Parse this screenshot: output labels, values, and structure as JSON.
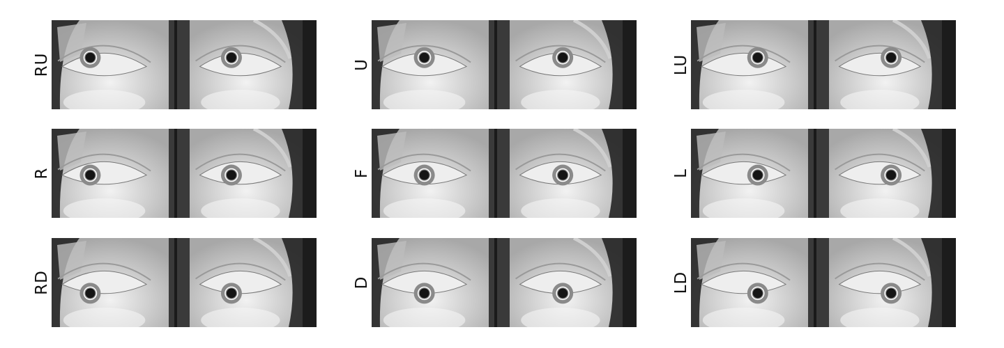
{
  "figure": {
    "panels": [
      {
        "label": "RU",
        "right_pupil_dx": -0.12,
        "left_pupil_dx": -0.08,
        "pupil_dy": -0.1
      },
      {
        "label": "U",
        "right_pupil_dx": 0.0,
        "left_pupil_dx": 0.02,
        "pupil_dy": -0.1
      },
      {
        "label": "LU",
        "right_pupil_dx": 0.12,
        "left_pupil_dx": 0.1,
        "pupil_dy": -0.1
      },
      {
        "label": "R",
        "right_pupil_dx": -0.12,
        "left_pupil_dx": -0.08,
        "pupil_dy": 0.0
      },
      {
        "label": "F",
        "right_pupil_dx": 0.0,
        "left_pupil_dx": 0.02,
        "pupil_dy": 0.0
      },
      {
        "label": "L",
        "right_pupil_dx": 0.12,
        "left_pupil_dx": 0.1,
        "pupil_dy": 0.0
      },
      {
        "label": "RD",
        "right_pupil_dx": -0.12,
        "left_pupil_dx": -0.08,
        "pupil_dy": 0.1
      },
      {
        "label": "D",
        "right_pupil_dx": 0.0,
        "left_pupil_dx": 0.02,
        "pupil_dy": 0.1
      },
      {
        "label": "LD",
        "right_pupil_dx": 0.12,
        "left_pupil_dx": 0.1,
        "pupil_dy": 0.1
      }
    ]
  },
  "colors": {
    "frame_dark": "#1c1c1c",
    "skin_light": "#d8d8d8",
    "sclera": "#eeeeee",
    "iris": "#8a8a8a",
    "pupil": "#151515",
    "pupil_marker": "#ffffff"
  }
}
